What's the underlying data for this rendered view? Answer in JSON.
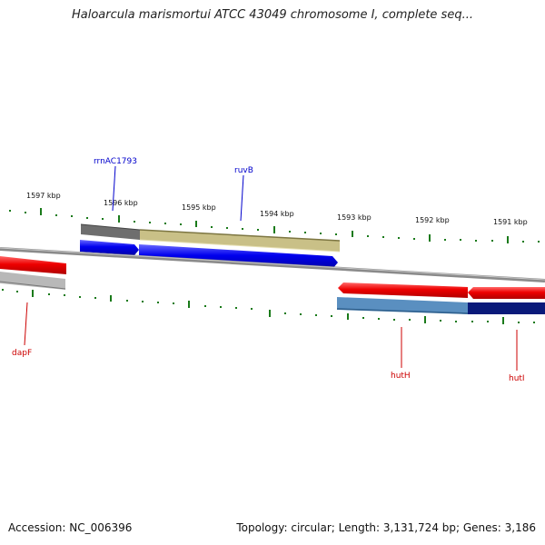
{
  "title": "Haloarcula marismortui ATCC 43049 chromosome I, complete seq...",
  "footer": {
    "accession": "Accession: NC_006396",
    "summary": "Topology: circular; Length: 3,131,724 bp; Genes: 3,186"
  },
  "ticks": [
    "1597 kbp",
    "1596 kbp",
    "1595 kbp",
    "1594 kbp",
    "1593 kbp",
    "1592 kbp",
    "1591 kbp"
  ],
  "genes": {
    "rrnAC1793": "rrnAC1793",
    "ruvB": "ruvB",
    "dapF": "dapF",
    "hutH": "hutH",
    "hutI": "hutI"
  },
  "colors": {
    "forward_gene": "#0000ee",
    "reverse_gene": "#ee0000",
    "forward_label": "#0000cc",
    "reverse_label": "#cc0000",
    "tick": "#1a7a1a",
    "backbone": "#888888",
    "cds_band_tan": "#c9c087",
    "cds_band_gray": "#777777",
    "cds_band_steel": "#5a8fc0",
    "cds_band_navy": "#0a1a7a"
  }
}
